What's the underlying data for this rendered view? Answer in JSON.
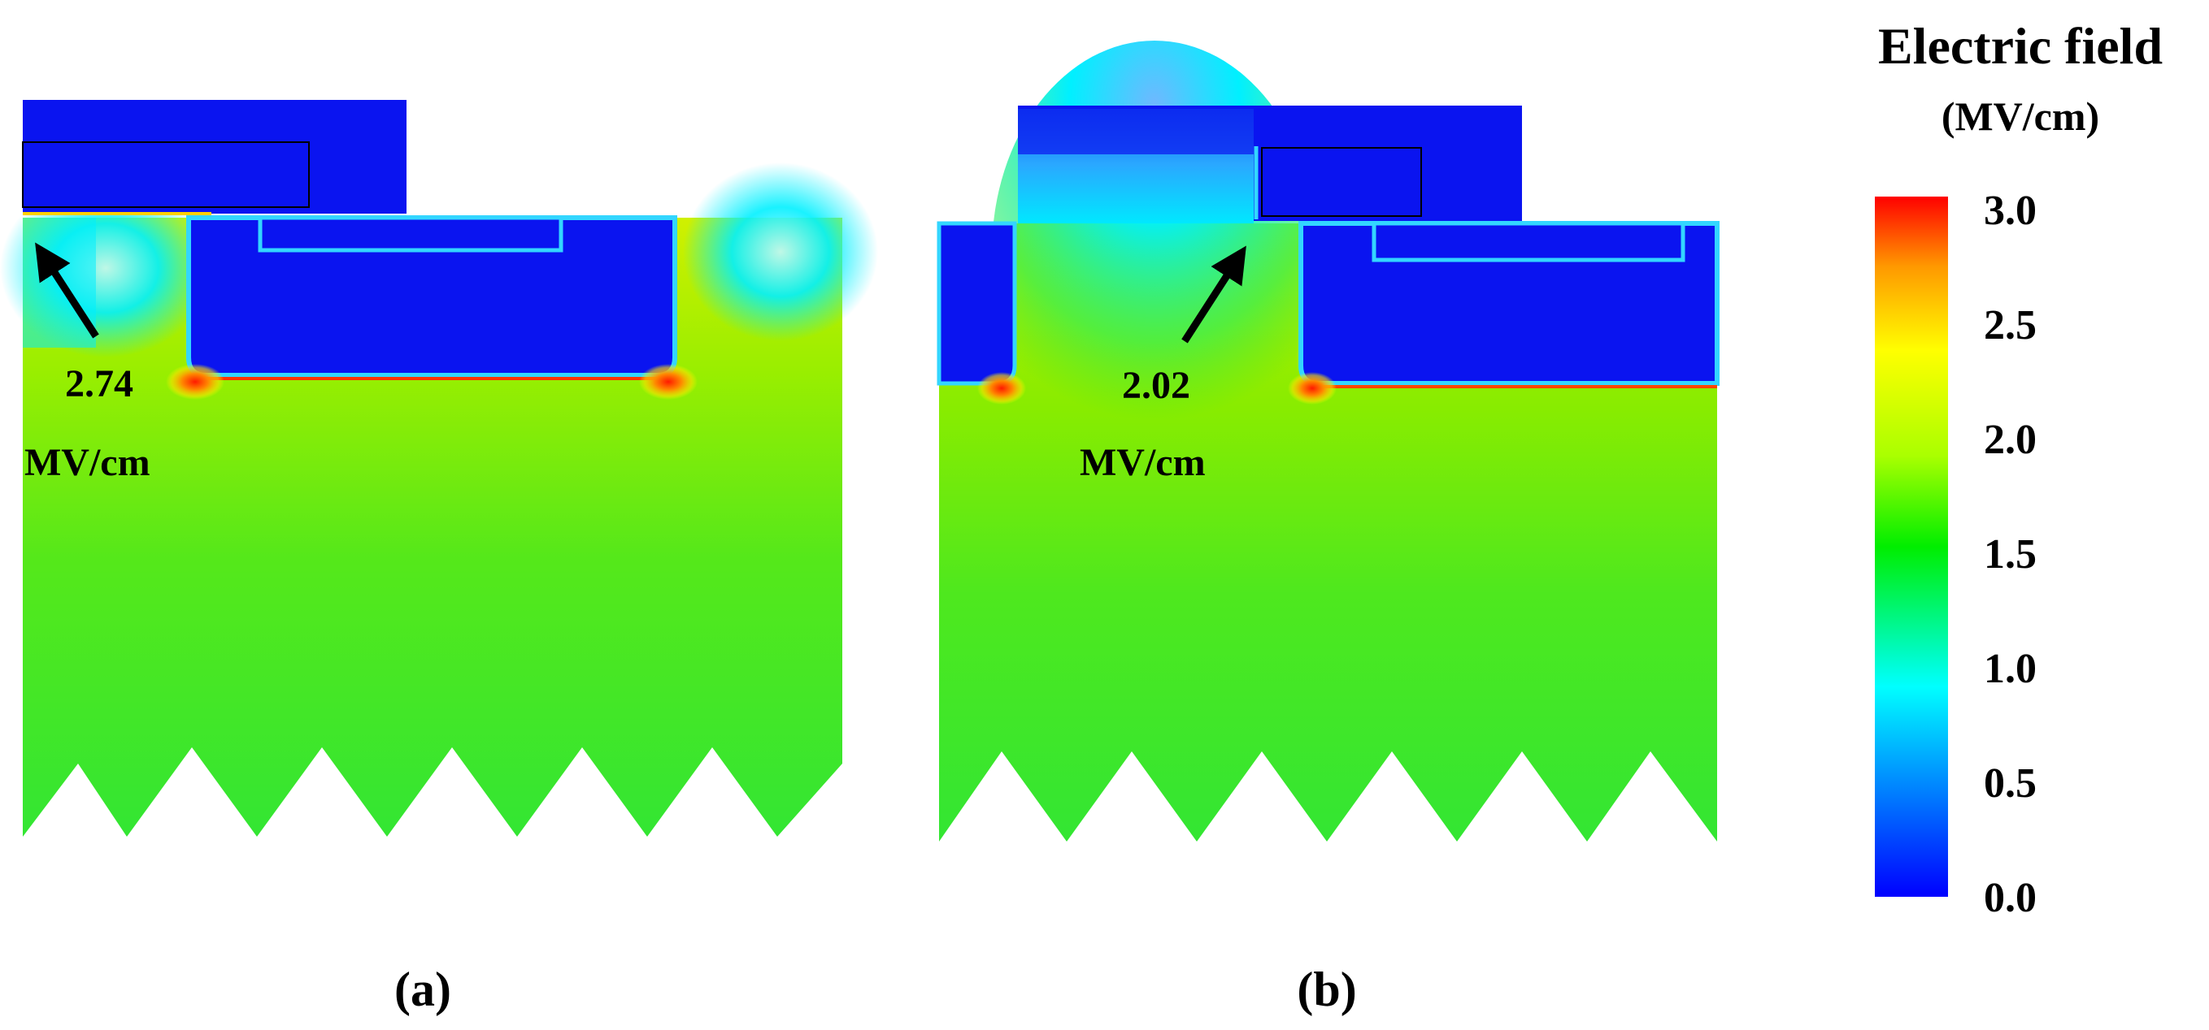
{
  "panels": [
    {
      "label": "a",
      "peak_value": "2.74",
      "peak_unit": "MV/cm"
    },
    {
      "label": "b",
      "peak_value": "2.02",
      "peak_unit": "MV/cm"
    }
  ],
  "colorbar": {
    "title_line1": "Electric field",
    "title_line2": "(MV/cm)",
    "ticks": [
      "3.0",
      "2.5",
      "2.0",
      "1.5",
      "1.0",
      "0.5",
      "0.0"
    ],
    "range": [
      0.0,
      3.0
    ],
    "colors": [
      "#0000ff",
      "#0066ff",
      "#00ffff",
      "#00ee00",
      "#aaff00",
      "#ffff00",
      "#ff9900",
      "#ff0000"
    ]
  },
  "colors": {
    "electrode_blue": "#0a14f0",
    "bulk_green": "#33e633",
    "high_field_yellow": "#c8f000",
    "peak_red": "#ff2200",
    "low_field_cyan": "#00f0ff"
  }
}
